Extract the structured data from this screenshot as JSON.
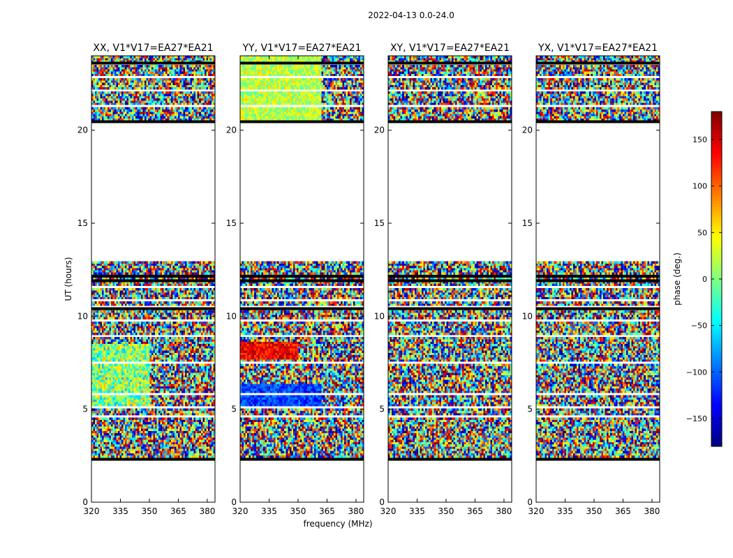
{
  "figure": {
    "title": "2022-04-13 0.0-24.0"
  },
  "chart_data": {
    "type": "heatmap",
    "xlabel": "frequency (MHz)",
    "ylabel": "UT (hours)",
    "xlim": [
      320,
      384
    ],
    "ylim": [
      0,
      24
    ],
    "xticks": [
      "320",
      "335",
      "350",
      "365",
      "380"
    ],
    "xtick_values": [
      320,
      335,
      350,
      365,
      380
    ],
    "yticks": [
      "0",
      "5",
      "10",
      "15",
      "20"
    ],
    "ytick_values": [
      0,
      5,
      10,
      15,
      20
    ],
    "panels": [
      {
        "title": "XX, V1*V17=EA27*EA21",
        "pol": "XX"
      },
      {
        "title": "YY, V1*V17=EA27*EA21",
        "pol": "YY"
      },
      {
        "title": "XY, V1*V17=EA27*EA21",
        "pol": "XY"
      },
      {
        "title": "YX, V1*V17=EA27*EA21",
        "pol": "YX"
      }
    ],
    "data_time_ranges_hours": [
      [
        2.25,
        13.0
      ],
      [
        20.4,
        24.0
      ]
    ],
    "colorbar": {
      "label": "phase (deg.)",
      "colormap": "jet",
      "range": [
        -180,
        180
      ],
      "ticks": [
        "150",
        "100",
        "50",
        "0",
        "−50",
        "−100",
        "−150"
      ],
      "tick_values": [
        150,
        100,
        50,
        0,
        -50,
        -100,
        -150
      ]
    }
  }
}
